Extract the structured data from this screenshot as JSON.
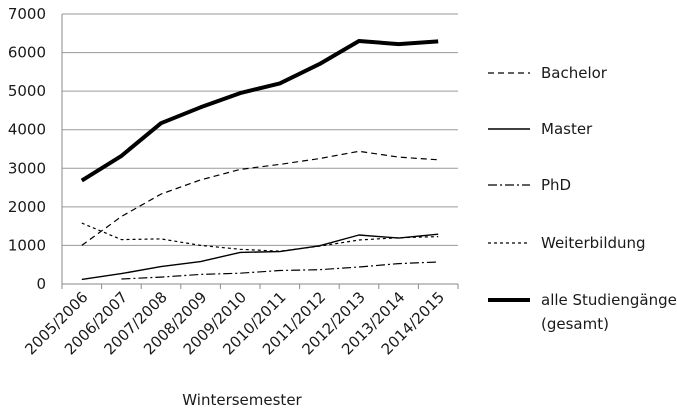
{
  "chart_data": {
    "type": "line",
    "xlabel": "Wintersemester",
    "ylabel": "",
    "ylim": [
      0,
      7000
    ],
    "yticks": [
      0,
      1000,
      2000,
      3000,
      4000,
      5000,
      6000,
      7000
    ],
    "grid": "horizontal",
    "legend_position": "right",
    "categories": [
      "2005/2006",
      "2006/2007",
      "2007/2008",
      "2008/2009",
      "2009/2010",
      "2010/2011",
      "2011/2012",
      "2012/2013",
      "2013/2014",
      "2014/2015"
    ],
    "series": [
      {
        "name": "Bachelor",
        "style": "dashed",
        "color": "#000000",
        "values": [
          1000,
          1750,
          2330,
          2700,
          2970,
          3100,
          3250,
          3440,
          3290,
          3220
        ]
      },
      {
        "name": "Master",
        "style": "solid",
        "color": "#000000",
        "values": [
          120,
          270,
          450,
          580,
          820,
          840,
          990,
          1270,
          1190,
          1290
        ]
      },
      {
        "name": "PhD",
        "style": "dashdot",
        "color": "#000000",
        "values": [
          null,
          130,
          180,
          250,
          280,
          350,
          370,
          440,
          530,
          570
        ]
      },
      {
        "name": "Weiterbildung",
        "style": "dotted",
        "color": "#000000",
        "values": [
          1580,
          1150,
          1170,
          1000,
          900,
          850,
          980,
          1140,
          1200,
          1230
        ]
      },
      {
        "name": "alle Studiengänge (gesamt)",
        "legend_lines": [
          "alle Studiengänge",
          "(gesamt)"
        ],
        "style": "thick",
        "color": "#000000",
        "values": [
          2680,
          3320,
          4170,
          4580,
          4950,
          5200,
          5700,
          6300,
          6220,
          6290
        ]
      }
    ]
  }
}
